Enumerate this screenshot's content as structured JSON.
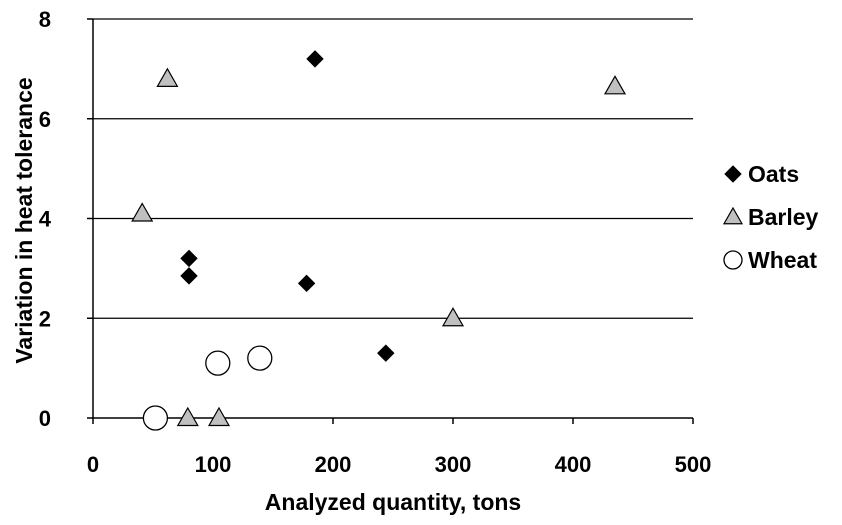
{
  "chart_data": {
    "type": "scatter",
    "title": "",
    "xlabel": "Analyzed quantity, tons",
    "ylabel": "Variation in heat tolerance",
    "xlim": [
      0,
      500
    ],
    "ylim": [
      0,
      8
    ],
    "xticks": [
      "0",
      "100",
      "200",
      "300",
      "400",
      "500"
    ],
    "yticks": [
      "0",
      "2",
      "4",
      "6",
      "8"
    ],
    "grid": "horizontal major gridlines",
    "legend_position": "right",
    "series": [
      {
        "name": "Oats",
        "marker": "diamond",
        "color": "#000000",
        "points": [
          [
            185,
            7.2
          ],
          [
            80,
            3.2
          ],
          [
            80,
            2.85
          ],
          [
            178,
            2.7
          ],
          [
            244,
            1.3
          ]
        ]
      },
      {
        "name": "Barley",
        "marker": "triangle",
        "color": "#c0c0c0",
        "points": [
          [
            62,
            6.8
          ],
          [
            435,
            6.65
          ],
          [
            41,
            4.1
          ],
          [
            300,
            2.0
          ],
          [
            79,
            0.0
          ],
          [
            105,
            0.0
          ]
        ]
      },
      {
        "name": "Wheat",
        "marker": "circle",
        "color": "#ffffff",
        "points": [
          [
            52,
            0.0
          ],
          [
            104,
            1.1
          ],
          [
            139,
            1.2
          ]
        ]
      }
    ]
  }
}
